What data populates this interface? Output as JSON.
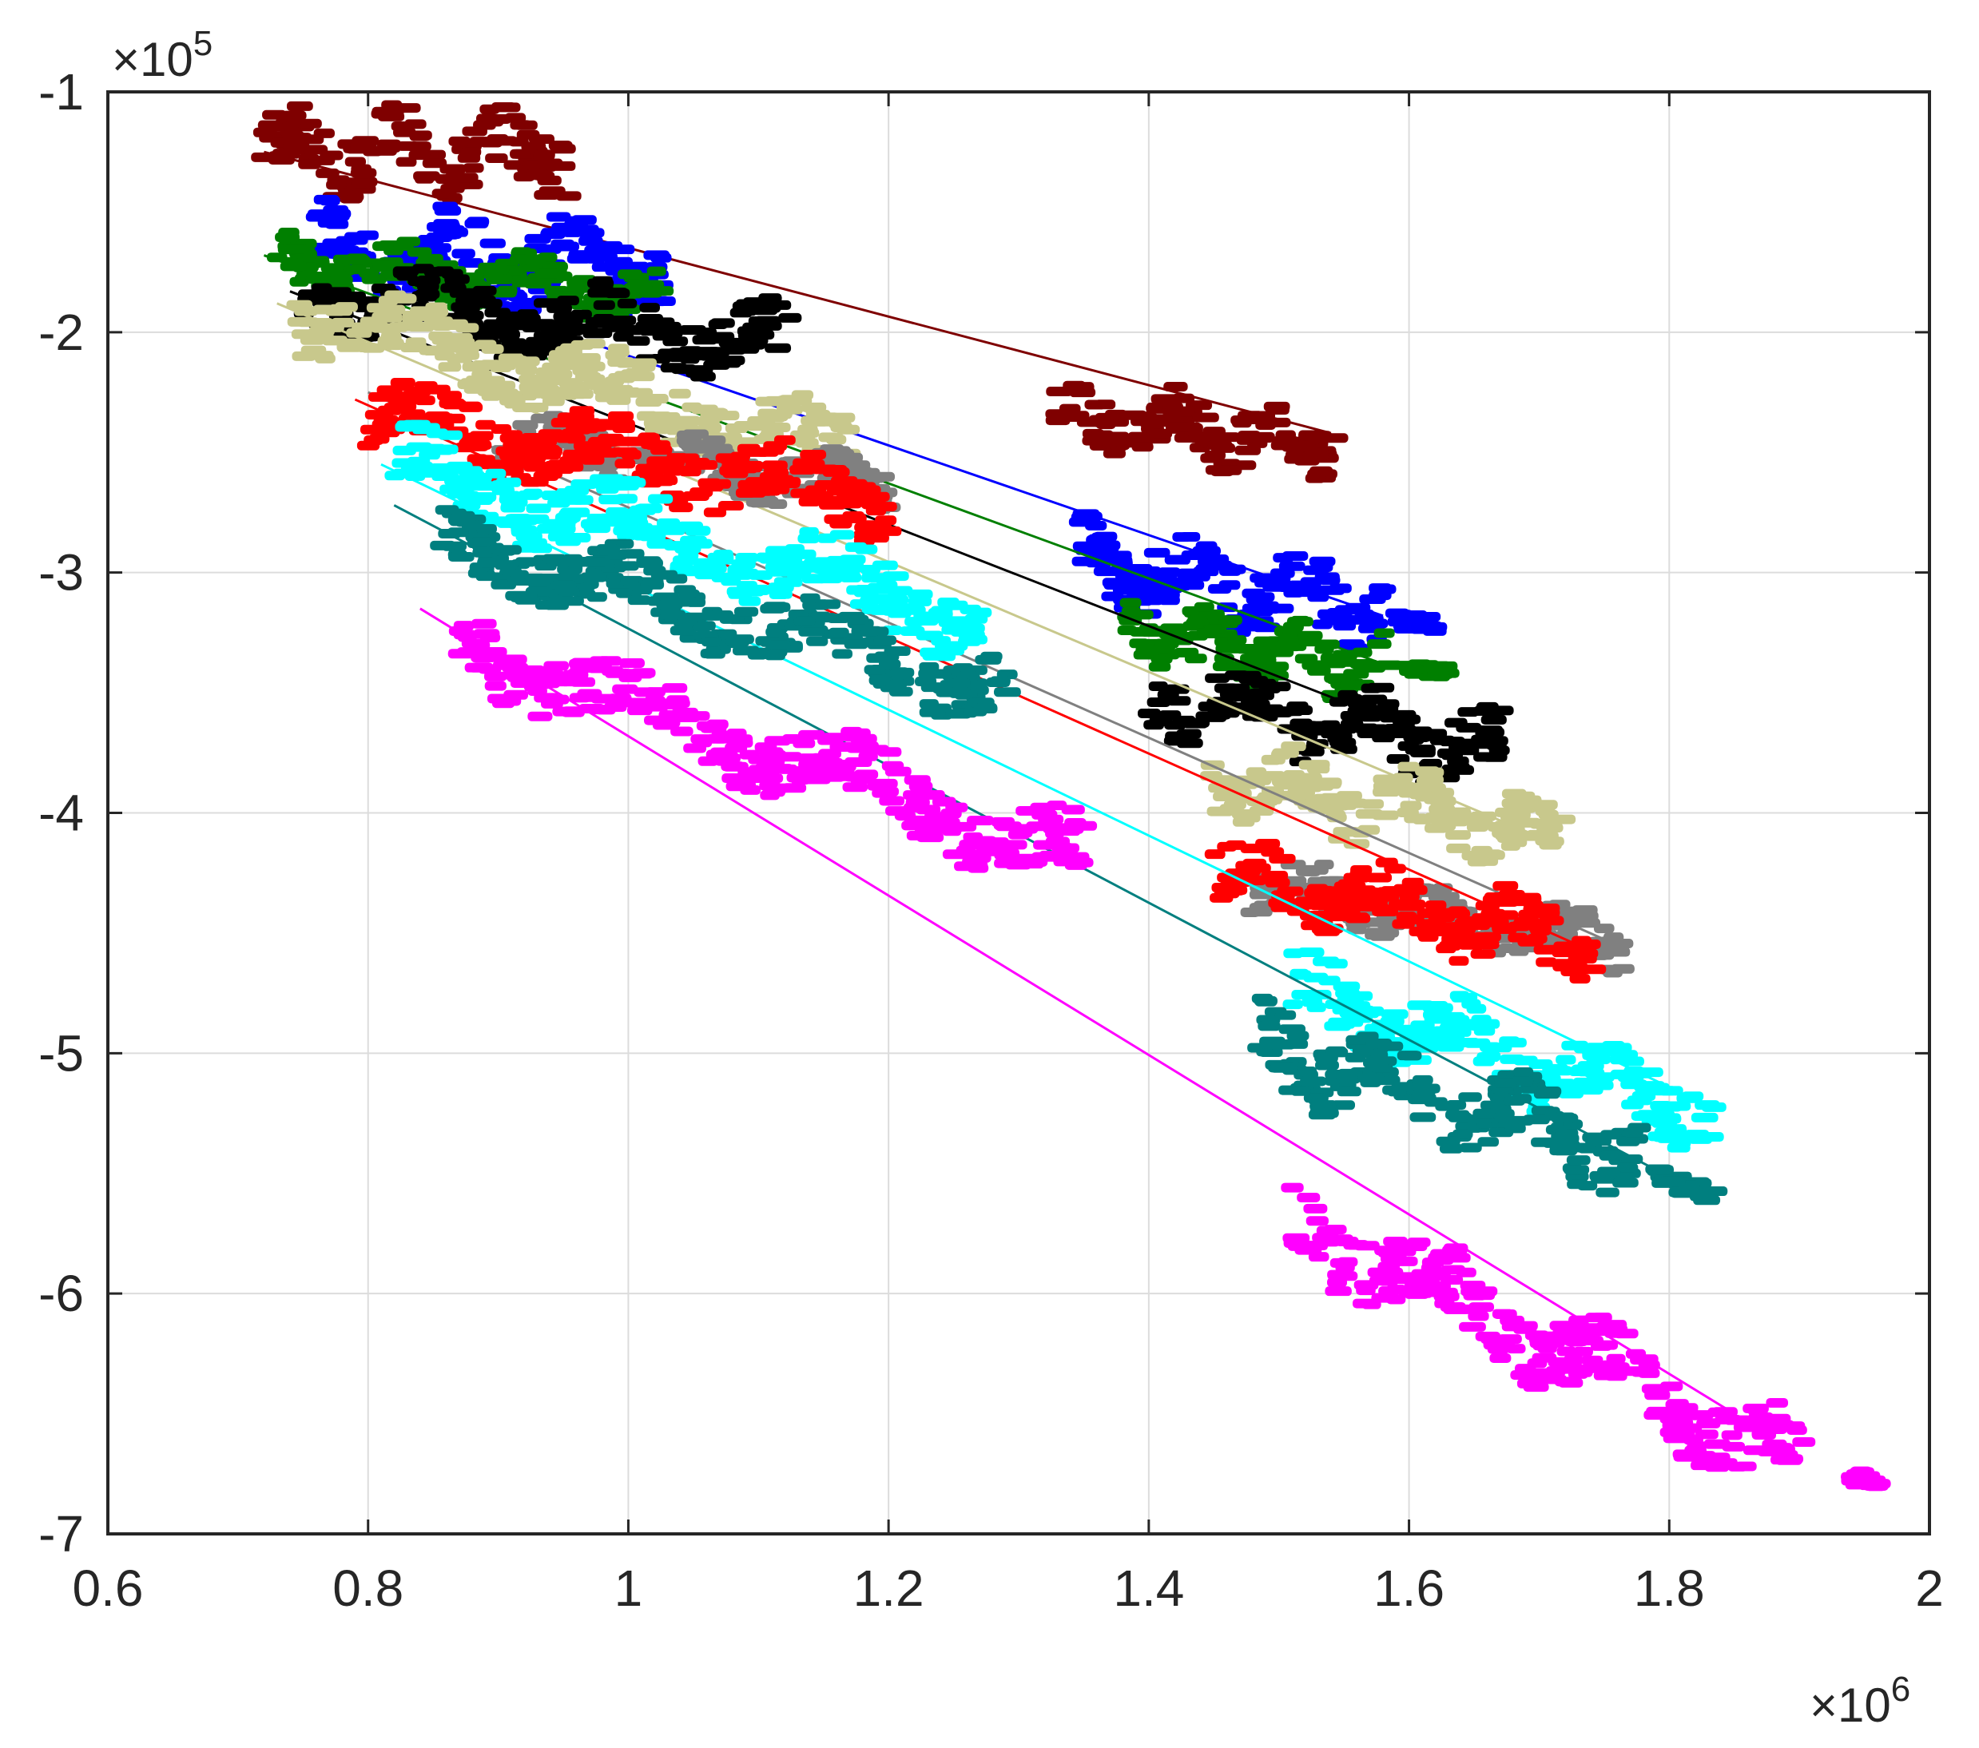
{
  "chart_data": {
    "type": "scatter",
    "title": "",
    "xlabel": "",
    "ylabel": "",
    "xlim": [
      600000,
      2000000
    ],
    "ylim": [
      -700000,
      -100000
    ],
    "grid": true,
    "legend": "none",
    "x_ticks": [
      600000,
      800000,
      1000000,
      1200000,
      1400000,
      1600000,
      1800000,
      2000000
    ],
    "x_tick_labels": [
      "0.6",
      "0.8",
      "1",
      "1.2",
      "1.4",
      "1.6",
      "1.8",
      "2"
    ],
    "y_ticks": [
      -100000,
      -200000,
      -300000,
      -400000,
      -500000,
      -600000,
      -700000
    ],
    "y_tick_labels": [
      "-1",
      "-2",
      "-3",
      "-4",
      "-5",
      "-6",
      "-7"
    ],
    "x_multiplier": {
      "base": "10",
      "exponent": "6"
    },
    "y_multiplier": {
      "base": "10",
      "exponent": "5"
    },
    "series": [
      {
        "color": "#7f0000",
        "clusters": [
          {
            "start": [
              720000,
              -125000
            ],
            "end": [
              950000,
              -125000
            ],
            "spread": 24000
          },
          {
            "start": [
              1320000,
              -235000
            ],
            "end": [
              1540000,
              -245000
            ],
            "spread": 20000
          }
        ],
        "line": [
          [
            720000,
            -125000
          ],
          [
            1540000,
            -242000
          ]
        ]
      },
      {
        "color": "#0000ff",
        "clusters": [
          {
            "start": [
              760000,
              -165000
            ],
            "end": [
              1030000,
              -175000
            ],
            "spread": 26000
          },
          {
            "start": [
              1340000,
              -295000
            ],
            "end": [
              1580000,
              -315000
            ],
            "spread": 24000
          },
          {
            "start": [
              1590000,
              -320000
            ],
            "end": [
              1620000,
              -322000
            ],
            "spread": 4000
          }
        ],
        "line": [
          [
            760000,
            -165000
          ],
          [
            1580000,
            -318000
          ]
        ]
      },
      {
        "color": "#007f00",
        "clusters": [
          {
            "start": [
              730000,
              -170000
            ],
            "end": [
              1020000,
              -185000
            ],
            "spread": 16000
          },
          {
            "start": [
              1380000,
              -325000
            ],
            "end": [
              1580000,
              -340000
            ],
            "spread": 20000
          },
          {
            "start": [
              1600000,
              -340000
            ],
            "end": [
              1630000,
              -342000
            ],
            "spread": 4000
          }
        ],
        "line": [
          [
            720000,
            -168000
          ],
          [
            1590000,
            -340000
          ]
        ]
      },
      {
        "color": "#000000",
        "clusters": [
          {
            "start": [
              750000,
              -185000
            ],
            "end": [
              1120000,
              -205000
            ],
            "spread": 22000
          },
          {
            "start": [
              1400000,
              -350000
            ],
            "end": [
              1670000,
              -375000
            ],
            "spread": 22000
          }
        ],
        "line": [
          [
            740000,
            -183000
          ],
          [
            1650000,
            -375000
          ]
        ]
      },
      {
        "color": "#c8c88c",
        "clusters": [
          {
            "start": [
              740000,
              -190000
            ],
            "end": [
              1170000,
              -250000
            ],
            "spread": 22000
          },
          {
            "start": [
              1450000,
              -385000
            ],
            "end": [
              1720000,
              -410000
            ],
            "spread": 22000
          }
        ],
        "line": [
          [
            730000,
            -188000
          ],
          [
            1700000,
            -410000
          ]
        ]
      },
      {
        "color": "#808080",
        "clusters": [
          {
            "start": [
              900000,
              -245000
            ],
            "end": [
              1200000,
              -265000
            ],
            "spread": 16000
          },
          {
            "start": [
              1480000,
              -430000
            ],
            "end": [
              1760000,
              -455000
            ],
            "spread": 16000
          }
        ],
        "line": [
          [
            800000,
            -225000
          ],
          [
            1760000,
            -455000
          ]
        ]
      },
      {
        "color": "#ff0000",
        "clusters": [
          {
            "start": [
              800000,
              -235000
            ],
            "end": [
              1200000,
              -270000
            ],
            "spread": 22000
          },
          {
            "start": [
              1450000,
              -425000
            ],
            "end": [
              1740000,
              -455000
            ],
            "spread": 22000
          }
        ],
        "line": [
          [
            790000,
            -228000
          ],
          [
            1730000,
            -455000
          ]
        ]
      },
      {
        "color": "#00ffff",
        "clusters": [
          {
            "start": [
              820000,
              -255000
            ],
            "end": [
              1270000,
              -320000
            ],
            "spread": 24000
          },
          {
            "start": [
              1510000,
              -475000
            ],
            "end": [
              1830000,
              -525000
            ],
            "spread": 24000
          }
        ],
        "line": [
          [
            810000,
            -255000
          ],
          [
            1830000,
            -522000
          ]
        ]
      },
      {
        "color": "#007f7f",
        "clusters": [
          {
            "start": [
              850000,
              -285000
            ],
            "end": [
              1290000,
              -350000
            ],
            "spread": 22000
          },
          {
            "start": [
              1480000,
              -495000
            ],
            "end": [
              1780000,
              -545000
            ],
            "spread": 26000
          },
          {
            "start": [
              1790000,
              -550000
            ],
            "end": [
              1830000,
              -560000
            ],
            "spread": 4000
          }
        ],
        "line": [
          [
            820000,
            -272000
          ],
          [
            1830000,
            -560000
          ]
        ]
      },
      {
        "color": "#ff00ff",
        "clusters": [
          {
            "start": [
              870000,
              -330000
            ],
            "end": [
              1350000,
              -420000
            ],
            "spread": 24000
          },
          {
            "start": [
              1510000,
              -570000
            ],
            "end": [
              1900000,
              -670000
            ],
            "spread": 26000
          },
          {
            "start": [
              1940000,
              -675000
            ],
            "end": [
              1955000,
              -680000
            ],
            "spread": 3000
          }
        ],
        "line": [
          [
            840000,
            -315000
          ],
          [
            1850000,
            -650000
          ]
        ]
      }
    ]
  }
}
